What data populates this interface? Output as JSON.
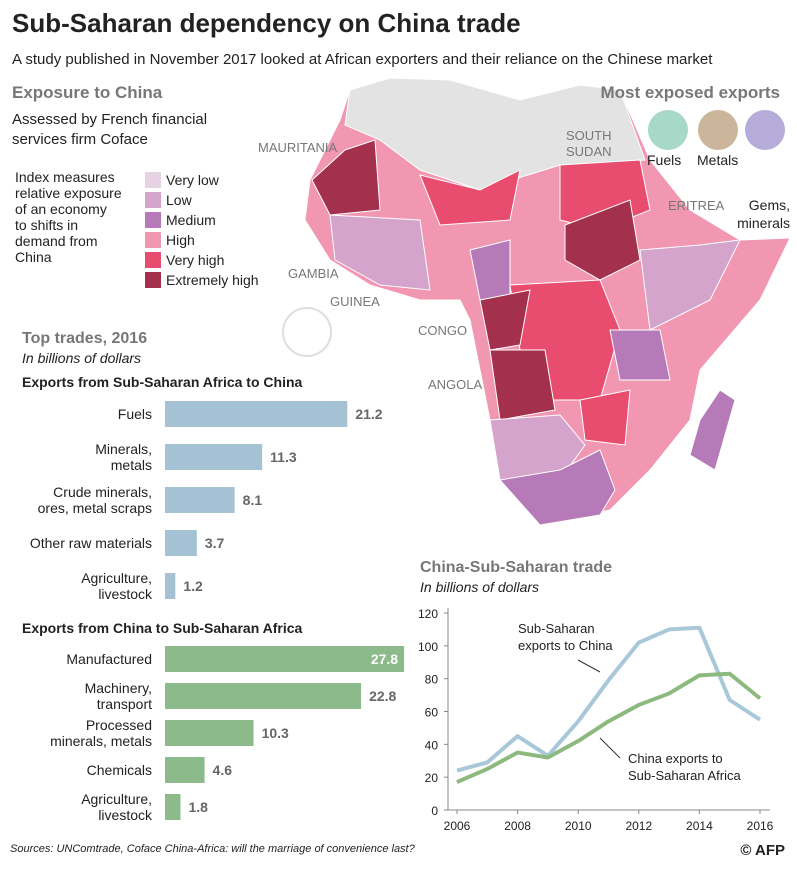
{
  "header": {
    "title": "Sub-Saharan dependency on China trade",
    "subtitle": "A study published in November 2017 looked at African exporters and their reliance on the Chinese market"
  },
  "map": {
    "title": "Exposure to China",
    "subtitle": [
      "Assessed by French financial",
      "services firm Coface"
    ],
    "index_text": [
      "Index measures",
      "relative exposure",
      "of an economy",
      "to shifts in",
      "demand from",
      "China"
    ],
    "legend": [
      {
        "label": "Very low",
        "color": "#e6d2e3"
      },
      {
        "label": "Low",
        "color": "#d4a4cc"
      },
      {
        "label": "Medium",
        "color": "#b57ab7"
      },
      {
        "label": "High",
        "color": "#f197b2"
      },
      {
        "label": "Very high",
        "color": "#e84c6f"
      },
      {
        "label": "Extremely high",
        "color": "#a3304c"
      }
    ],
    "countries": [
      [
        "MAURITANIA"
      ],
      [
        "SOUTH",
        "SUDAN"
      ],
      [
        "ERITREA"
      ],
      [
        "GAMBIA"
      ],
      [
        "GUINEA"
      ],
      [
        "CONGO"
      ],
      [
        "ANGOLA"
      ]
    ],
    "exports_title": "Most exposed exports",
    "exports": [
      [
        "Fuels"
      ],
      [
        "Metals"
      ],
      [
        "Gems,",
        "minerals"
      ]
    ]
  },
  "trades": {
    "title": "Top trades, 2016",
    "subtitle": "In billions of dollars"
  },
  "chart_data": [
    {
      "type": "bar",
      "orientation": "horizontal",
      "title": "Exports from Sub-Saharan Africa to China",
      "color": "#a4c2d4",
      "categories": [
        [
          "Fuels"
        ],
        [
          "Minerals,",
          "metals"
        ],
        [
          "Crude minerals,",
          "ores, metal scraps"
        ],
        [
          "Other raw materials"
        ],
        [
          "Agriculture,",
          "livestock"
        ]
      ],
      "values": [
        21.2,
        11.3,
        8.1,
        3.7,
        1.2
      ]
    },
    {
      "type": "bar",
      "orientation": "horizontal",
      "title": "Exports from China to Sub-Saharan Africa",
      "color": "#8cba8b",
      "categories": [
        [
          "Manufactured"
        ],
        [
          "Machinery,",
          "transport"
        ],
        [
          "Processed",
          "minerals, metals"
        ],
        [
          "Chemicals"
        ],
        [
          "Agriculture,",
          "livestock"
        ]
      ],
      "values": [
        27.8,
        22.8,
        10.3,
        4.6,
        1.8
      ]
    },
    {
      "type": "line",
      "title": "China-Sub-Saharan trade",
      "subtitle": "In billions of dollars",
      "x": [
        2006,
        2007,
        2008,
        2009,
        2010,
        2011,
        2012,
        2013,
        2014,
        2015,
        2016
      ],
      "xlim": [
        2006,
        2016
      ],
      "xticks": [
        2006,
        2008,
        2010,
        2012,
        2014,
        2016
      ],
      "ylim": [
        0,
        120
      ],
      "yticks": [
        0,
        20,
        40,
        60,
        80,
        100,
        120
      ],
      "series": [
        {
          "name": [
            "Sub-Saharan",
            "exports to China"
          ],
          "color": "#a8c8da",
          "values": [
            24,
            29,
            45,
            33,
            54,
            79,
            102,
            110,
            111,
            67,
            55
          ]
        },
        {
          "name": [
            "China exports to",
            "Sub-Saharan Africa"
          ],
          "color": "#8cba7e",
          "values": [
            17,
            25,
            35,
            32,
            42,
            54,
            64,
            71,
            82,
            83,
            68
          ]
        }
      ]
    }
  ],
  "footer": {
    "source": "Sources: UNComtrade, Coface China-Africa: will the marriage of convenience last?",
    "logo": "© AFP"
  }
}
